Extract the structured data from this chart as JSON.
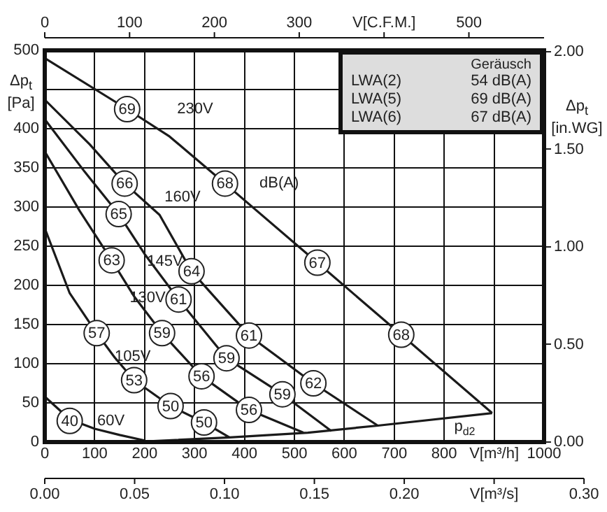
{
  "chart_data": {
    "type": "line",
    "series": [
      {
        "name": "230V",
        "color": "#1a1a1a",
        "x": [
          0,
          165,
          250,
          361,
          546,
          714,
          896
        ],
        "values": [
          490,
          425,
          390,
          330,
          229,
          137,
          37
        ]
      },
      {
        "name": "160V",
        "color": "#1a1a1a",
        "x": [
          0,
          90,
          160,
          230,
          294,
          409,
          538,
          667
        ],
        "values": [
          437,
          380,
          330,
          290,
          218,
          136,
          75,
          21
        ]
      },
      {
        "name": "145V",
        "color": "#1a1a1a",
        "x": [
          0,
          80,
          148,
          200,
          268,
          364,
          476,
          574
        ],
        "values": [
          412,
          345,
          291,
          240,
          182,
          107,
          61,
          14
        ]
      },
      {
        "name": "130V",
        "color": "#1a1a1a",
        "x": [
          0,
          70,
          134,
          180,
          235,
          314,
          409,
          518
        ],
        "values": [
          371,
          295,
          232,
          185,
          139,
          84,
          41,
          12
        ]
      },
      {
        "name": "105V",
        "color": "#1a1a1a",
        "x": [
          0,
          50,
          104,
          140,
          179,
          252,
          319,
          370
        ],
        "values": [
          273,
          190,
          139,
          108,
          79,
          46,
          25,
          6
        ]
      },
      {
        "name": "60V",
        "color": "#1a1a1a",
        "x": [
          0,
          50,
          100,
          150,
          200
        ],
        "values": [
          58,
          29,
          17,
          9,
          2
        ]
      },
      {
        "name": "p$_{d2}$",
        "color": "#1a1a1a",
        "x": [
          210,
          370,
          527,
          667,
          896
        ],
        "values": [
          1,
          6,
          12,
          21,
          37
        ]
      }
    ],
    "xlim": [
      0,
      1000
    ],
    "xticks": [
      0,
      100,
      200,
      300,
      400,
      500,
      600,
      700,
      800,
      {
        "value": 900,
        "label": "V[m³/h]"
      },
      1000
    ],
    "ylim": [
      0,
      500
    ],
    "yticks": [
      0,
      50,
      100,
      150,
      200,
      250,
      300,
      350,
      400,
      {
        "value": 450,
        "label": null
      },
      500
    ],
    "y2lim": [
      0,
      2.007
    ],
    "y2ticks": [
      {
        "value": 0,
        "label": "0.00"
      },
      {
        "value": 0.5,
        "label": "0.50"
      },
      {
        "value": 1,
        "label": "1.00"
      },
      {
        "value": 1.5,
        "label": "1.50"
      },
      {
        "value": 2,
        "label": "2.00"
      }
    ],
    "x2lim": [
      0,
      588.6
    ],
    "x2ticks": [
      0,
      100,
      200,
      300,
      {
        "value": 400,
        "label": "V[C.F.M.]"
      },
      500
    ],
    "ylabel": "Δp$_{t}$ [Pa]",
    "y2label": "Δp$_{t}$ [in.WG]",
    "grid": true,
    "legend": false,
    "annotations": [
      "Geräusch",
      "LWA(2)",
      "54 dB(A)",
      "LWA(5)",
      "69 dB(A)",
      "LWA(6)",
      "67 dB(A)",
      "dB(A)",
      "0.00",
      "0.05",
      "0.10",
      "0.15",
      "0.20",
      "V[m³/s]",
      "0.30",
      {
        "text": "69",
        "x": 165,
        "y": 425
      },
      {
        "text": "68",
        "x": 361,
        "y": 330
      },
      {
        "text": "67",
        "x": 546,
        "y": 229
      },
      {
        "text": "68",
        "x": 714,
        "y": 137
      },
      {
        "text": "66",
        "x": 160,
        "y": 330
      },
      {
        "text": "64",
        "x": 294,
        "y": 218
      },
      {
        "text": "61",
        "x": 409,
        "y": 136
      },
      {
        "text": "62",
        "x": 538,
        "y": 75
      },
      {
        "text": "65",
        "x": 148,
        "y": 291
      },
      {
        "text": "61",
        "x": 268,
        "y": 182
      },
      {
        "text": "59",
        "x": 364,
        "y": 107
      },
      {
        "text": "59",
        "x": 476,
        "y": 61
      },
      {
        "text": "63",
        "x": 134,
        "y": 232
      },
      {
        "text": "59",
        "x": 235,
        "y": 139
      },
      {
        "text": "56",
        "x": 314,
        "y": 84
      },
      {
        "text": "56",
        "x": 409,
        "y": 41
      },
      {
        "text": "57",
        "x": 104,
        "y": 139
      },
      {
        "text": "53",
        "x": 179,
        "y": 79
      },
      {
        "text": "50",
        "x": 252,
        "y": 46
      },
      {
        "text": "50",
        "x": 319,
        "y": 25
      },
      {
        "text": "40",
        "x": 50,
        "y": 27
      }
    ]
  }
}
